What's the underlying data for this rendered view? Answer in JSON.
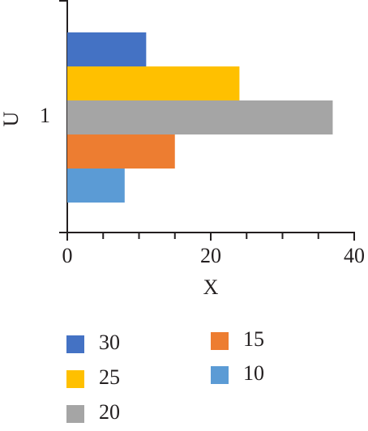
{
  "chart_data": {
    "type": "bar",
    "orientation": "horizontal",
    "x_label": "X",
    "y_label": "U",
    "categories": [
      "1"
    ],
    "series": [
      {
        "name": "30",
        "color": "#4472c4",
        "values": [
          11
        ]
      },
      {
        "name": "25",
        "color": "#ffc000",
        "values": [
          24
        ]
      },
      {
        "name": "20",
        "color": "#a5a5a5",
        "values": [
          37
        ]
      },
      {
        "name": "15",
        "color": "#ed7d31",
        "values": [
          15
        ]
      },
      {
        "name": "10",
        "color": "#5b9bd5",
        "values": [
          8
        ]
      }
    ],
    "xlim": [
      0,
      40
    ],
    "xticks": [
      0,
      20,
      40
    ],
    "xminorticks": [
      5,
      10,
      15,
      25,
      30,
      35
    ],
    "grid": false
  }
}
